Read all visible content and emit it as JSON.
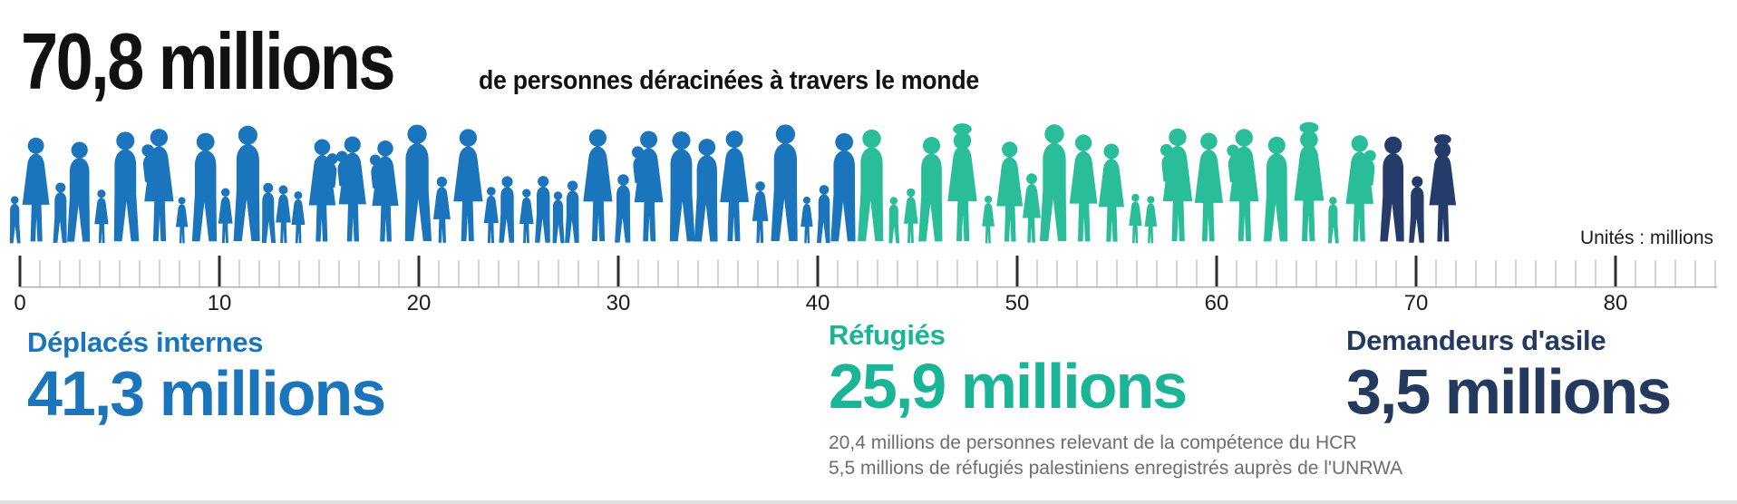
{
  "header": {
    "headline": "70,8 millions",
    "subtitle": "de personnes déracinées à travers le monde"
  },
  "axis": {
    "unit_label": "Unités : millions",
    "min": 0,
    "max": 85,
    "minor_step": 1,
    "major_step": 10,
    "labeled_ticks": [
      "0",
      "10",
      "20",
      "30",
      "40",
      "50",
      "60",
      "70",
      "80"
    ]
  },
  "chart_data": {
    "type": "pictogram-bar",
    "title": "70,8 millions de personnes déracinées à travers le monde",
    "unit": "millions",
    "total": {
      "value": 70.8,
      "label": "70,8 millions"
    },
    "xlim": [
      0,
      85
    ],
    "grid": false,
    "legend_position": "below-axis",
    "categories": [
      "Déplacés internes",
      "Réfugiés",
      "Demandeurs d'asile"
    ],
    "values": [
      41.3,
      25.9,
      3.5
    ],
    "series": [
      {
        "name": "Déplacés internes",
        "value": 41.3,
        "value_label": "41,3 millions",
        "color": "#1b75bc",
        "figure_color": "#1b75bc",
        "notes": []
      },
      {
        "name": "Réfugiés",
        "value": 25.9,
        "value_label": "25,9 millions",
        "color": "#1ab496",
        "figure_color": "#2abd99",
        "notes": [
          "20,4 millions de personnes relevant de la compétence du HCR",
          "5,5 millions de réfugiés palestiniens enregistrés auprès de l'UNRWA"
        ]
      },
      {
        "name": "Demandeurs d'asile",
        "value": 3.5,
        "value_label": "3,5 millions",
        "color": "#24395e",
        "figure_color": "#253c6b",
        "notes": []
      }
    ]
  },
  "palette": {
    "title_text": "#111111",
    "axis_label": "#1c1c1c",
    "tick_minor": "#b9b9b9",
    "tick_major": "#2e2e2e",
    "axis_line": "#a8a8a8",
    "notes_text": "#6d6e71",
    "bottom_rule": "#dedede"
  }
}
